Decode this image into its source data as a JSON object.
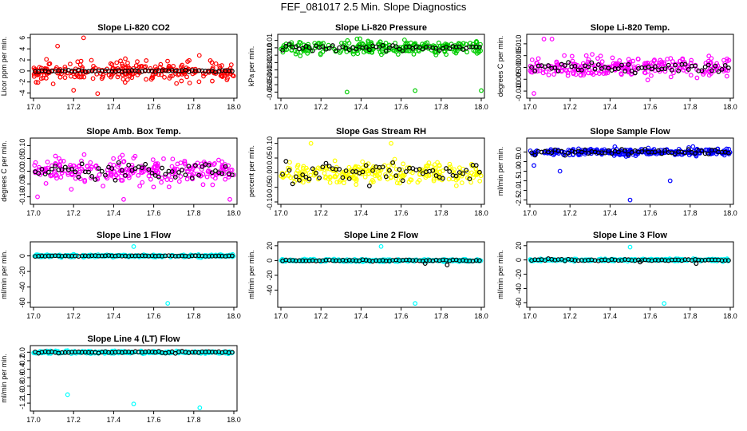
{
  "page": {
    "title": "FEF_081017  2.5 Min. Slope Diagnostics"
  },
  "colors": {
    "black": "#000000",
    "red": "#ff0000",
    "green": "#00cc00",
    "magenta": "#ff00ff",
    "yellow": "#ffff00",
    "blue": "#0000ff",
    "cyan": "#00ffff"
  },
  "chart_data": [
    {
      "type": "scatter",
      "title": "Slope Li-820 CO2",
      "ylabel": "Licor ppm per min.",
      "color_key": "red",
      "xlim": [
        17.0,
        18.0
      ],
      "ylim": [
        -4.5,
        6.2
      ],
      "xticks": [
        "17.0",
        "17.2",
        "17.4",
        "17.6",
        "17.8",
        "18.0"
      ],
      "yticks": [
        -4,
        -2,
        0,
        2,
        4,
        6
      ],
      "ytick_labels": [
        "-4",
        "-2",
        "0",
        "2",
        "4",
        "6"
      ],
      "series": [
        {
          "name": "colored",
          "spread": 1.8,
          "outliers": [
            [
              17.25,
              6.0
            ],
            [
              17.32,
              -4.1
            ],
            [
              17.2,
              -3.5
            ],
            [
              17.12,
              4.5
            ]
          ]
        },
        {
          "name": "black",
          "spread": 0.15,
          "outliers": []
        }
      ]
    },
    {
      "type": "scatter",
      "title": "Slope Li-820 Pressure",
      "ylabel": "kPa per min.",
      "color_key": "green",
      "xlim": [
        17.0,
        18.0
      ],
      "ylim": [
        -0.065,
        0.015
      ],
      "xticks": [
        "17.0",
        "17.2",
        "17.4",
        "17.6",
        "17.8",
        "18.0"
      ],
      "yticks": [
        0.01,
        0.0,
        -0.01,
        -0.02,
        -0.03,
        -0.04,
        -0.05,
        -0.06
      ],
      "ytick_labels": [
        "0.01",
        "0.0",
        "-0.01",
        "-0.02",
        "-0.03",
        "-0.04",
        "-0.05",
        "-0.06"
      ],
      "series": [
        {
          "name": "colored",
          "spread": 0.008,
          "outliers": [
            [
              17.33,
              -0.06
            ],
            [
              17.67,
              -0.058
            ],
            [
              18.0,
              -0.058
            ],
            [
              17.38,
              0.012
            ]
          ]
        },
        {
          "name": "black",
          "spread": 0.004,
          "outliers": []
        }
      ]
    },
    {
      "type": "scatter",
      "title": "Slope Li-820 Temp.",
      "ylabel": "degrees C per min.",
      "color_key": "magenta",
      "xlim": [
        17.0,
        18.0
      ],
      "ylim": [
        -0.012,
        0.013
      ],
      "xticks": [
        "17.0",
        "17.2",
        "17.4",
        "17.6",
        "17.8",
        "18.0"
      ],
      "yticks": [
        0.01,
        0.005,
        0.0,
        -0.005,
        -0.01
      ],
      "ytick_labels": [
        "0.010",
        "0.005",
        "0.000",
        "-0.005",
        "-0.010"
      ],
      "series": [
        {
          "name": "colored",
          "spread": 0.004,
          "outliers": [
            [
              17.02,
              -0.011
            ],
            [
              17.11,
              0.012
            ],
            [
              17.07,
              0.012
            ]
          ]
        },
        {
          "name": "black",
          "spread": 0.002,
          "outliers": []
        }
      ]
    },
    {
      "type": "scatter",
      "title": "Slope Amb. Box Temp.",
      "ylabel": "degrees C per min.",
      "color_key": "magenta",
      "xlim": [
        17.0,
        18.0
      ],
      "ylim": [
        -0.12,
        0.12
      ],
      "xticks": [
        "17.0",
        "17.2",
        "17.4",
        "17.6",
        "17.8",
        "18.0"
      ],
      "yticks": [
        0.1,
        0.05,
        0.0,
        -0.05,
        -0.1
      ],
      "ytick_labels": [
        "0.10",
        "0.05",
        "0.00",
        "-0.05",
        "-0.10"
      ],
      "series": [
        {
          "name": "colored",
          "spread": 0.045,
          "outliers": [
            [
              17.98,
              -0.11
            ],
            [
              17.02,
              -0.1
            ],
            [
              17.45,
              -0.11
            ]
          ]
        },
        {
          "name": "black",
          "spread": 0.03,
          "outliers": []
        }
      ]
    },
    {
      "type": "scatter",
      "title": "Slope Gas Stream RH",
      "ylabel": "percent per min.",
      "color_key": "yellow",
      "xlim": [
        17.0,
        18.0
      ],
      "ylim": [
        -0.1,
        0.11
      ],
      "xticks": [
        "17.0",
        "17.2",
        "17.4",
        "17.6",
        "17.8",
        "18.0"
      ],
      "yticks": [
        0.1,
        0.05,
        0.0,
        -0.05,
        -0.1
      ],
      "ytick_labels": [
        "0.10",
        "0.05",
        "0.00",
        "-0.05",
        "-0.10"
      ],
      "series": [
        {
          "name": "colored",
          "spread": 0.035,
          "outliers": [
            [
              17.15,
              0.1
            ],
            [
              17.55,
              0.1
            ]
          ]
        },
        {
          "name": "black",
          "spread": 0.035,
          "outliers": []
        }
      ]
    },
    {
      "type": "scatter",
      "title": "Slope Sample Flow",
      "ylabel": "ml/min per min.",
      "color_key": "blue",
      "xlim": [
        17.0,
        18.0
      ],
      "ylim": [
        -2.6,
        0.6
      ],
      "xticks": [
        "17.0",
        "17.2",
        "17.4",
        "17.6",
        "17.8",
        "18.0"
      ],
      "yticks": [
        0.0,
        -0.5,
        -1.0,
        -1.5,
        -2.0,
        -2.5
      ],
      "ytick_labels": [
        "0.0",
        "-0.5",
        "-1.0",
        "-1.5",
        "-2.0",
        "-2.5"
      ],
      "series": [
        {
          "name": "colored",
          "spread": 0.18,
          "outliers": [
            [
              17.5,
              -2.5
            ],
            [
              17.15,
              -1.0
            ],
            [
              17.02,
              -0.7
            ],
            [
              17.7,
              -1.5
            ]
          ]
        },
        {
          "name": "black",
          "spread": 0.15,
          "outliers": []
        }
      ]
    },
    {
      "type": "scatter",
      "title": "Slope Line 1 Flow",
      "ylabel": "ml/min per min.",
      "color_key": "cyan",
      "xlim": [
        17.0,
        18.0
      ],
      "ylim": [
        -63,
        15
      ],
      "xticks": [
        "17.0",
        "17.2",
        "17.4",
        "17.6",
        "17.8",
        "18.0"
      ],
      "yticks": [
        0,
        -20,
        -40,
        -60
      ],
      "ytick_labels": [
        "0",
        "-20",
        "-40",
        "-60"
      ],
      "series": [
        {
          "name": "colored",
          "spread": 1.5,
          "outliers": [
            [
              17.5,
              12
            ],
            [
              17.67,
              -61
            ]
          ]
        },
        {
          "name": "black",
          "spread": 0.5,
          "outliers": []
        }
      ]
    },
    {
      "type": "scatter",
      "title": "Slope Line 2 Flow",
      "ylabel": "ml/min per min.",
      "color_key": "cyan",
      "xlim": [
        17.0,
        18.0
      ],
      "ylim": [
        -60,
        22
      ],
      "xticks": [
        "17.0",
        "17.2",
        "17.4",
        "17.6",
        "17.8",
        "18.0"
      ],
      "yticks": [
        20,
        0,
        -20,
        -40
      ],
      "ytick_labels": [
        "20",
        "0",
        "-20",
        "-40"
      ],
      "series": [
        {
          "name": "colored",
          "spread": 1.5,
          "outliers": [
            [
              17.5,
              19
            ],
            [
              17.67,
              -58
            ]
          ]
        },
        {
          "name": "black",
          "spread": 1.0,
          "outliers": [
            [
              17.83,
              -6
            ],
            [
              17.72,
              -4
            ]
          ]
        }
      ]
    },
    {
      "type": "scatter",
      "title": "Slope Line 3 Flow",
      "ylabel": "ml/min per min.",
      "color_key": "cyan",
      "xlim": [
        17.0,
        18.0
      ],
      "ylim": [
        -63,
        22
      ],
      "xticks": [
        "17.0",
        "17.2",
        "17.4",
        "17.6",
        "17.8",
        "18.0"
      ],
      "yticks": [
        20,
        0,
        -20,
        -40,
        -60
      ],
      "ytick_labels": [
        "20",
        "0",
        "-20",
        "-40",
        "-60"
      ],
      "series": [
        {
          "name": "colored",
          "spread": 1.5,
          "outliers": [
            [
              17.5,
              18
            ],
            [
              17.67,
              -61
            ]
          ]
        },
        {
          "name": "black",
          "spread": 1.2,
          "outliers": [
            [
              17.83,
              -5
            ],
            [
              17.55,
              -3
            ]
          ]
        }
      ]
    },
    {
      "type": "scatter",
      "title": "Slope Line 4 (LT) Flow",
      "ylabel": "ml/min per min.",
      "color_key": "cyan",
      "xlim": [
        17.0,
        18.0
      ],
      "ylim": [
        -1.33,
        0.1
      ],
      "xticks": [
        "17.0",
        "17.2",
        "17.4",
        "17.6",
        "17.8",
        "18.0"
      ],
      "yticks": [
        0.0,
        -0.2,
        -0.4,
        -0.6,
        -0.8,
        -1.0,
        -1.2
      ],
      "ytick_labels": [
        "0.0",
        "-0.2",
        "-0.4",
        "-0.6",
        "-0.8",
        "-1.0",
        "-1.2"
      ],
      "series": [
        {
          "name": "colored",
          "spread": 0.03,
          "outliers": [
            [
              17.17,
              -1.0
            ],
            [
              17.5,
              -1.22
            ],
            [
              17.83,
              -1.31
            ]
          ]
        },
        {
          "name": "black",
          "spread": 0.025,
          "outliers": []
        }
      ]
    }
  ]
}
